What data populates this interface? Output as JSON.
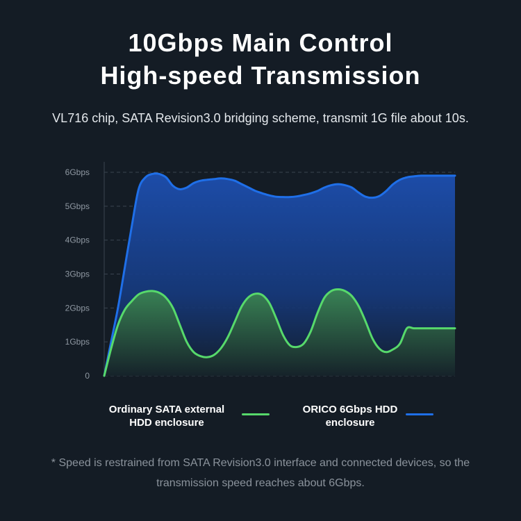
{
  "header": {
    "title_line1": "10Gbps Main Control",
    "title_line2": "High-speed Transmission",
    "subtitle": "VL716 chip, SATA Revision3.0 bridging scheme, transmit 1G file about 10s."
  },
  "chart_data": {
    "type": "area",
    "title": "",
    "xlabel": "",
    "ylabel": "",
    "ylim": [
      0,
      6
    ],
    "yticks": [
      {
        "value": 0,
        "label": "0"
      },
      {
        "value": 1,
        "label": "1Gbps"
      },
      {
        "value": 2,
        "label": "2Gbps"
      },
      {
        "value": 3,
        "label": "3Gbps"
      },
      {
        "value": 4,
        "label": "4Gbps"
      },
      {
        "value": 5,
        "label": "5Gbps"
      },
      {
        "value": 6,
        "label": "6Gbps"
      }
    ],
    "grid": true,
    "legend_position": "bottom",
    "x": [
      0,
      1,
      2,
      3,
      4,
      5,
      6,
      7,
      8,
      9,
      10,
      11,
      12,
      13,
      14,
      15,
      16,
      17,
      18,
      19,
      20,
      21,
      22,
      23,
      24,
      25,
      26,
      27,
      28,
      29,
      30,
      31,
      32,
      33,
      34,
      35,
      36,
      37,
      38,
      39,
      40,
      41,
      42,
      43,
      44,
      45,
      46,
      47,
      48,
      49,
      50,
      51
    ],
    "series": [
      {
        "name": "ORICO 6Gbps HDD enclosure",
        "color": "#1f6fe8",
        "values": [
          0,
          1.0,
          2.0,
          3.2,
          4.4,
          5.5,
          5.85,
          5.95,
          5.95,
          5.85,
          5.6,
          5.5,
          5.55,
          5.68,
          5.75,
          5.78,
          5.8,
          5.82,
          5.8,
          5.75,
          5.65,
          5.55,
          5.45,
          5.38,
          5.32,
          5.28,
          5.27,
          5.27,
          5.29,
          5.33,
          5.38,
          5.45,
          5.55,
          5.62,
          5.65,
          5.62,
          5.55,
          5.4,
          5.28,
          5.25,
          5.3,
          5.45,
          5.65,
          5.78,
          5.85,
          5.88,
          5.9,
          5.9,
          5.9,
          5.9,
          5.9,
          5.9
        ]
      },
      {
        "name": "Ordinary SATA external HDD enclosure",
        "color": "#57d96b",
        "values": [
          0,
          0.8,
          1.5,
          1.95,
          2.2,
          2.4,
          2.48,
          2.5,
          2.45,
          2.3,
          2.0,
          1.5,
          1.0,
          0.7,
          0.58,
          0.55,
          0.62,
          0.82,
          1.15,
          1.6,
          2.05,
          2.32,
          2.42,
          2.38,
          2.15,
          1.7,
          1.2,
          0.9,
          0.85,
          0.95,
          1.3,
          1.85,
          2.3,
          2.5,
          2.55,
          2.5,
          2.35,
          2.05,
          1.6,
          1.1,
          0.8,
          0.7,
          0.78,
          0.95,
          1.4,
          1.4,
          1.4,
          1.4,
          1.4,
          1.4,
          1.4,
          1.4
        ]
      }
    ]
  },
  "legend": {
    "sata_label": "Ordinary SATA external HDD enclosure",
    "orico_label": "ORICO 6Gbps HDD enclosure"
  },
  "footnote": "* Speed is restrained from SATA Revision3.0 interface and connected devices, so the transmission speed reaches about 6Gbps."
}
